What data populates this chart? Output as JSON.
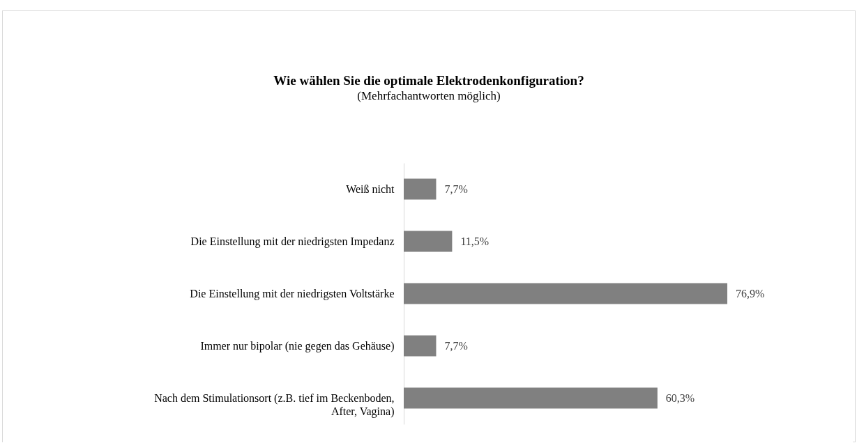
{
  "chart_data": {
    "type": "bar",
    "orientation": "horizontal",
    "title": "Wie wählen Sie die optimale Elektrodenkonfiguration?",
    "subtitle": "(Mehrfachantworten möglich)",
    "categories": [
      "Weiß nicht",
      "Die Einstellung mit der niedrigsten Impedanz",
      "Die Einstellung mit der niedrigsten Voltstärke",
      "Immer nur bipolar (nie gegen das Gehäuse)",
      "Nach dem Stimulationsort (z.B. tief im Beckenboden, After, Vagina)"
    ],
    "values": [
      7.7,
      11.5,
      76.9,
      7.7,
      60.3
    ],
    "value_labels": [
      "7,7%",
      "11,5%",
      "76,9%",
      "7,7%",
      "60,3%"
    ],
    "color": "#808080"
  }
}
